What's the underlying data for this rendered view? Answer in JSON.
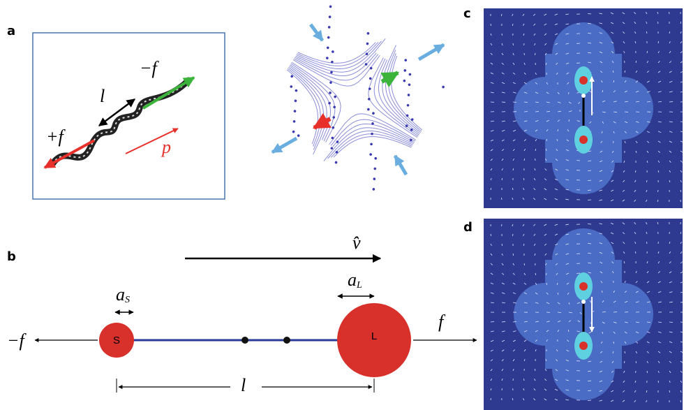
{
  "panel_a": {
    "label": "a",
    "length": "l",
    "minus_force": "−f⃗",
    "plus_force": "+f⃗",
    "dipole": "p⃗"
  },
  "panel_b": {
    "label": "b",
    "velocity": "v̂",
    "small_radius": {
      "symbol": "a",
      "subscript": "S"
    },
    "large_radius": {
      "symbol": "a",
      "subscript": "L"
    },
    "small_sphere": "S",
    "large_sphere": "L",
    "minus_force": "−f",
    "plus_force": "f",
    "length": "l"
  },
  "panel_c": {
    "label": "c"
  },
  "panel_d": {
    "label": "d"
  }
}
